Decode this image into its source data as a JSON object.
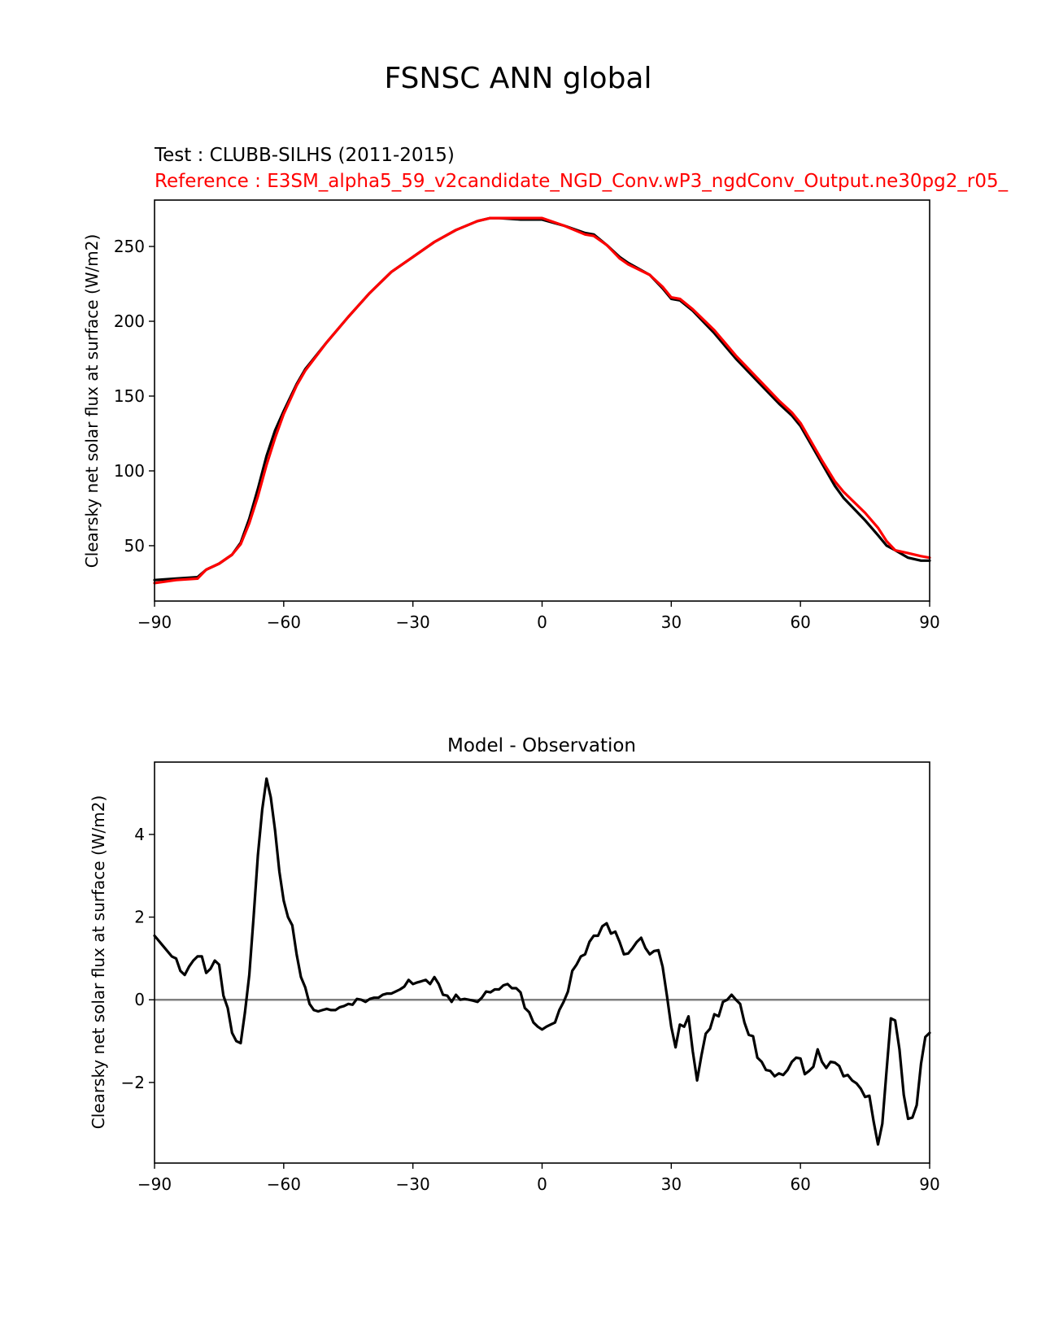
{
  "figure": {
    "title": "FSNSC ANN global"
  },
  "chart_data": [
    {
      "type": "line",
      "title_test": "Test : CLUBB-SILHS (2011-2015)",
      "title_reference": "Reference : E3SM_alpha5_59_v2candidate_NGD_Conv.wP3_ngdConv_Output.ne30pg2_r05_",
      "xlabel": "",
      "ylabel": "Clearsky net solar flux at surface (W/m2)",
      "xlim": [
        -90,
        90
      ],
      "ylim": [
        13,
        281
      ],
      "xticks": [
        -90,
        -60,
        -30,
        0,
        30,
        60,
        90
      ],
      "xtick_labels": [
        "−90",
        "−60",
        "−30",
        "0",
        "30",
        "60",
        "90"
      ],
      "yticks": [
        50,
        100,
        150,
        200,
        250
      ],
      "ytick_labels": [
        "50",
        "100",
        "150",
        "200",
        "250"
      ],
      "colors": {
        "test": "#000000",
        "reference": "#ff0000"
      },
      "series": [
        {
          "name": "test",
          "x": [
            -90,
            -85,
            -80,
            -78,
            -75,
            -72,
            -70,
            -68,
            -66,
            -64,
            -62,
            -60,
            -57,
            -55,
            -50,
            -45,
            -40,
            -35,
            -30,
            -25,
            -20,
            -15,
            -12,
            -10,
            -5,
            0,
            5,
            10,
            12,
            15,
            18,
            20,
            25,
            28,
            30,
            32,
            35,
            40,
            45,
            50,
            55,
            58,
            60,
            62,
            65,
            68,
            70,
            75,
            78,
            80,
            82,
            85,
            88,
            90
          ],
          "values": [
            27,
            28,
            29,
            34,
            38,
            44,
            52,
            68,
            88,
            110,
            127,
            140,
            158,
            168,
            186,
            203,
            219,
            233,
            243,
            253,
            261,
            267,
            269,
            269,
            268,
            268,
            264,
            259,
            258,
            251,
            243,
            239,
            231,
            222,
            215,
            214,
            207,
            192,
            175,
            160,
            145,
            137,
            130,
            120,
            105,
            90,
            82,
            67,
            57,
            50,
            47,
            42,
            40,
            40
          ]
        },
        {
          "name": "reference",
          "x": [
            -90,
            -85,
            -80,
            -78,
            -75,
            -72,
            -70,
            -68,
            -66,
            -64,
            -62,
            -60,
            -57,
            -55,
            -50,
            -45,
            -40,
            -35,
            -30,
            -25,
            -20,
            -15,
            -12,
            -10,
            -5,
            0,
            5,
            10,
            12,
            15,
            18,
            20,
            25,
            28,
            30,
            32,
            35,
            40,
            45,
            50,
            55,
            58,
            60,
            62,
            65,
            68,
            70,
            75,
            78,
            80,
            82,
            85,
            88,
            90
          ],
          "values": [
            25,
            27,
            28,
            34,
            38,
            44,
            51,
            65,
            83,
            104,
            122,
            138,
            157,
            167,
            186,
            203,
            219,
            233,
            243,
            253,
            261,
            267,
            269,
            269,
            269,
            269,
            264,
            258,
            257,
            251,
            242,
            238,
            231,
            223,
            216,
            215,
            208,
            194,
            177,
            162,
            147,
            139,
            132,
            122,
            107,
            93,
            86,
            72,
            62,
            53,
            47,
            45,
            43,
            42
          ]
        }
      ]
    },
    {
      "type": "line",
      "title": "Model - Observation",
      "xlabel": "",
      "ylabel": "Clearsky net solar flux at surface (W/m2)",
      "xlim": [
        -90,
        90
      ],
      "ylim": [
        -3.95,
        5.75
      ],
      "xticks": [
        -90,
        -60,
        -30,
        0,
        30,
        60,
        90
      ],
      "xtick_labels": [
        "−90",
        "−60",
        "−30",
        "0",
        "30",
        "60",
        "90"
      ],
      "yticks": [
        -2,
        0,
        2,
        4
      ],
      "ytick_labels": [
        "−2",
        "0",
        "2",
        "4"
      ],
      "zero_line_color": "#808080",
      "colors": {
        "diff": "#000000"
      },
      "series": [
        {
          "name": "diff",
          "x": [
            -90,
            -88,
            -86,
            -85,
            -84,
            -83,
            -82,
            -81,
            -80,
            -79,
            -78,
            -77,
            -76,
            -75,
            -74,
            -73,
            -72,
            -71,
            -70,
            -69,
            -68,
            -67,
            -66,
            -65,
            -64,
            -63,
            -62,
            -61,
            -60,
            -59,
            -58,
            -57,
            -56,
            -55,
            -54,
            -53,
            -52,
            -51,
            -50,
            -49,
            -48,
            -47,
            -46,
            -45,
            -44,
            -43,
            -42,
            -41,
            -40,
            -39,
            -38,
            -37,
            -36,
            -35,
            -34,
            -33,
            -32,
            -31,
            -30,
            -29,
            -28,
            -27,
            -26,
            -25,
            -24,
            -23,
            -22,
            -21,
            -20,
            -19,
            -18,
            -17,
            -16,
            -15,
            -14,
            -13,
            -12,
            -11,
            -10,
            -9,
            -8,
            -7,
            -6,
            -5,
            -4,
            -3,
            -2,
            -1,
            0,
            1,
            2,
            3,
            4,
            5,
            6,
            7,
            8,
            9,
            10,
            11,
            12,
            13,
            14,
            15,
            16,
            17,
            18,
            19,
            20,
            21,
            22,
            23,
            24,
            25,
            26,
            27,
            28,
            29,
            30,
            31,
            32,
            33,
            34,
            35,
            36,
            37,
            38,
            39,
            40,
            41,
            42,
            43,
            44,
            45,
            46,
            47,
            48,
            49,
            50,
            51,
            52,
            53,
            54,
            55,
            56,
            57,
            58,
            59,
            60,
            61,
            62,
            63,
            64,
            65,
            66,
            67,
            68,
            69,
            70,
            71,
            72,
            73,
            74,
            75,
            76,
            77,
            78,
            79,
            80,
            81,
            82,
            83,
            84,
            85,
            86,
            87,
            88,
            89,
            90
          ],
          "values": [
            1.55,
            1.3,
            1.05,
            1.0,
            0.7,
            0.6,
            0.8,
            0.95,
            1.05,
            1.05,
            0.65,
            0.75,
            0.95,
            0.85,
            0.1,
            -0.2,
            -0.8,
            -1.0,
            -1.05,
            -0.3,
            0.6,
            2.0,
            3.5,
            4.6,
            5.35,
            4.9,
            4.1,
            3.1,
            2.4,
            2.0,
            1.8,
            1.1,
            0.55,
            0.3,
            -0.1,
            -0.25,
            -0.28,
            -0.25,
            -0.22,
            -0.25,
            -0.25,
            -0.18,
            -0.15,
            -0.1,
            -0.12,
            0.02,
            0.0,
            -0.05,
            0.02,
            0.05,
            0.05,
            0.12,
            0.15,
            0.15,
            0.2,
            0.25,
            0.32,
            0.48,
            0.38,
            0.42,
            0.45,
            0.48,
            0.38,
            0.55,
            0.38,
            0.12,
            0.1,
            -0.05,
            0.12,
            0.0,
            0.02,
            0.0,
            -0.02,
            -0.05,
            0.05,
            0.2,
            0.18,
            0.25,
            0.25,
            0.35,
            0.38,
            0.28,
            0.28,
            0.18,
            -0.2,
            -0.3,
            -0.55,
            -0.65,
            -0.72,
            -0.65,
            -0.6,
            -0.55,
            -0.25,
            -0.05,
            0.2,
            0.7,
            0.85,
            1.05,
            1.1,
            1.4,
            1.55,
            1.55,
            1.78,
            1.85,
            1.6,
            1.65,
            1.4,
            1.1,
            1.12,
            1.25,
            1.4,
            1.5,
            1.25,
            1.1,
            1.18,
            1.2,
            0.8,
            0.1,
            -0.65,
            -1.15,
            -0.6,
            -0.65,
            -0.4,
            -1.25,
            -1.95,
            -1.35,
            -0.82,
            -0.7,
            -0.35,
            -0.4,
            -0.05,
            0.0,
            0.12,
            0.0,
            -0.1,
            -0.55,
            -0.85,
            -0.88,
            -1.4,
            -1.5,
            -1.7,
            -1.72,
            -1.85,
            -1.78,
            -1.82,
            -1.7,
            -1.5,
            -1.4,
            -1.42,
            -1.8,
            -1.72,
            -1.62,
            -1.2,
            -1.5,
            -1.65,
            -1.5,
            -1.52,
            -1.6,
            -1.85,
            -1.82,
            -1.95,
            -2.02,
            -2.15,
            -2.35,
            -2.32,
            -2.95,
            -3.5,
            -3.0,
            -1.7,
            -0.45,
            -0.5,
            -1.2,
            -2.3,
            -2.88,
            -2.85,
            -2.55,
            -1.55,
            -0.9,
            -0.8
          ]
        }
      ]
    }
  ]
}
